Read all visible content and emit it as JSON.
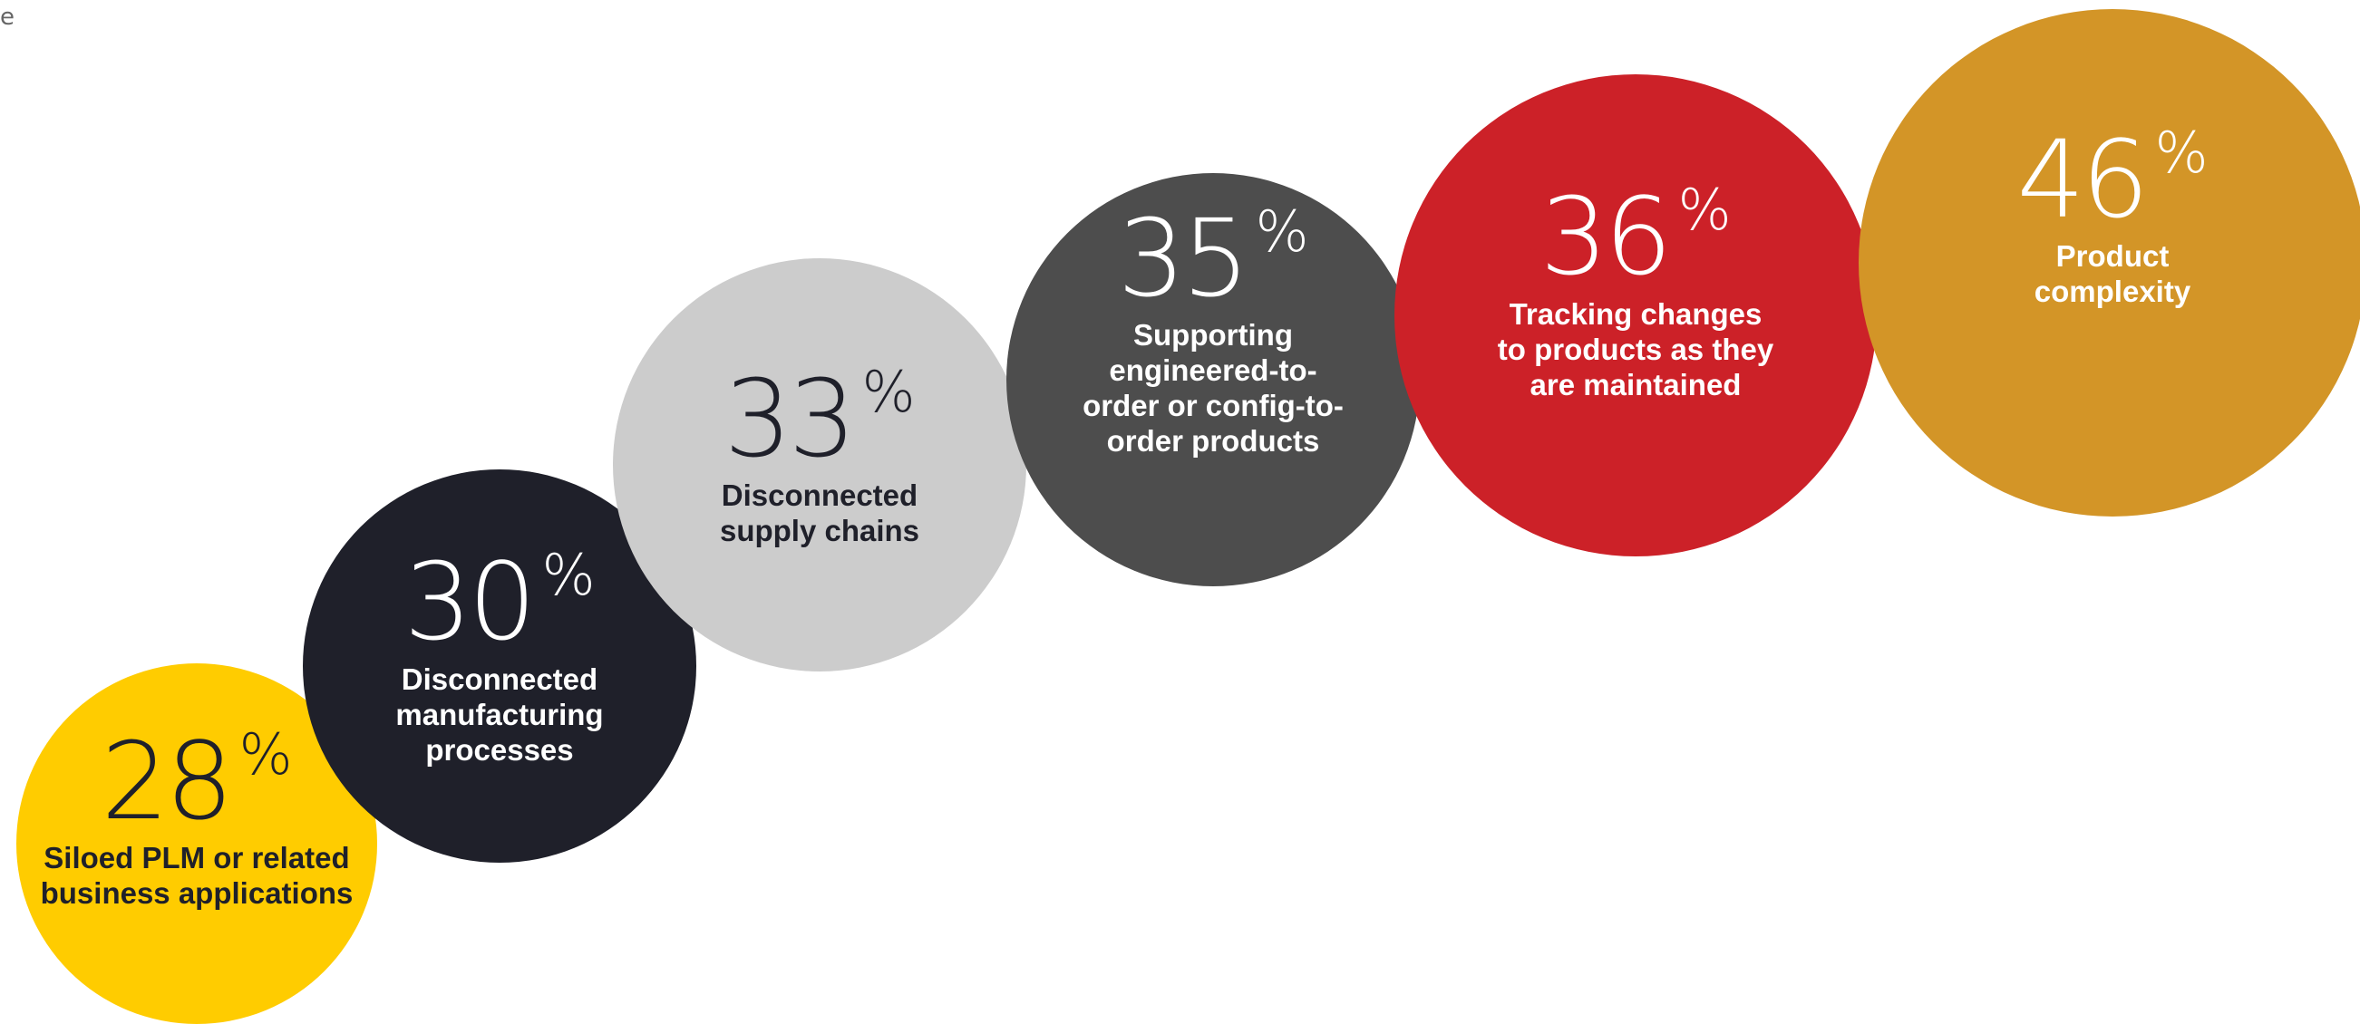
{
  "corner_text": "e",
  "chart_data": {
    "type": "bubble",
    "title": "",
    "unit": "%",
    "categories": [
      "Siloed PLM or related business applications",
      "Disconnected manufacturing processes",
      "Disconnected supply chains",
      "Supporting engineered-to-order or config-to-order products",
      "Tracking changes to products as they are maintained",
      "Product complexity"
    ],
    "values": [
      28,
      30,
      33,
      35,
      36,
      46
    ],
    "items": [
      {
        "value": "28",
        "percent_sign": "%",
        "label": "Siloed PLM or related\nbusiness applications",
        "fill": "#FFCC00",
        "text_color": "#1f202a"
      },
      {
        "value": "30",
        "percent_sign": "%",
        "label": "Disconnected\nmanufacturing\nprocesses",
        "fill": "#1f202a",
        "text_color": "#ffffff"
      },
      {
        "value": "33",
        "percent_sign": "%",
        "label": "Disconnected\nsupply chains",
        "fill": "#cccccc",
        "text_color": "#1f202a"
      },
      {
        "value": "35",
        "percent_sign": "%",
        "label": "Supporting\nengineered-to-\norder or config-to-\norder products",
        "fill": "#4d4d4d",
        "text_color": "#ffffff"
      },
      {
        "value": "36",
        "percent_sign": "%",
        "label": "Tracking changes\nto products as they\nare maintained",
        "fill": "#cc2128",
        "text_color": "#ffffff"
      },
      {
        "value": "46",
        "percent_sign": "%",
        "label": "Product\ncomplexity",
        "fill": "#d39527",
        "text_color": "#ffffff"
      }
    ]
  }
}
